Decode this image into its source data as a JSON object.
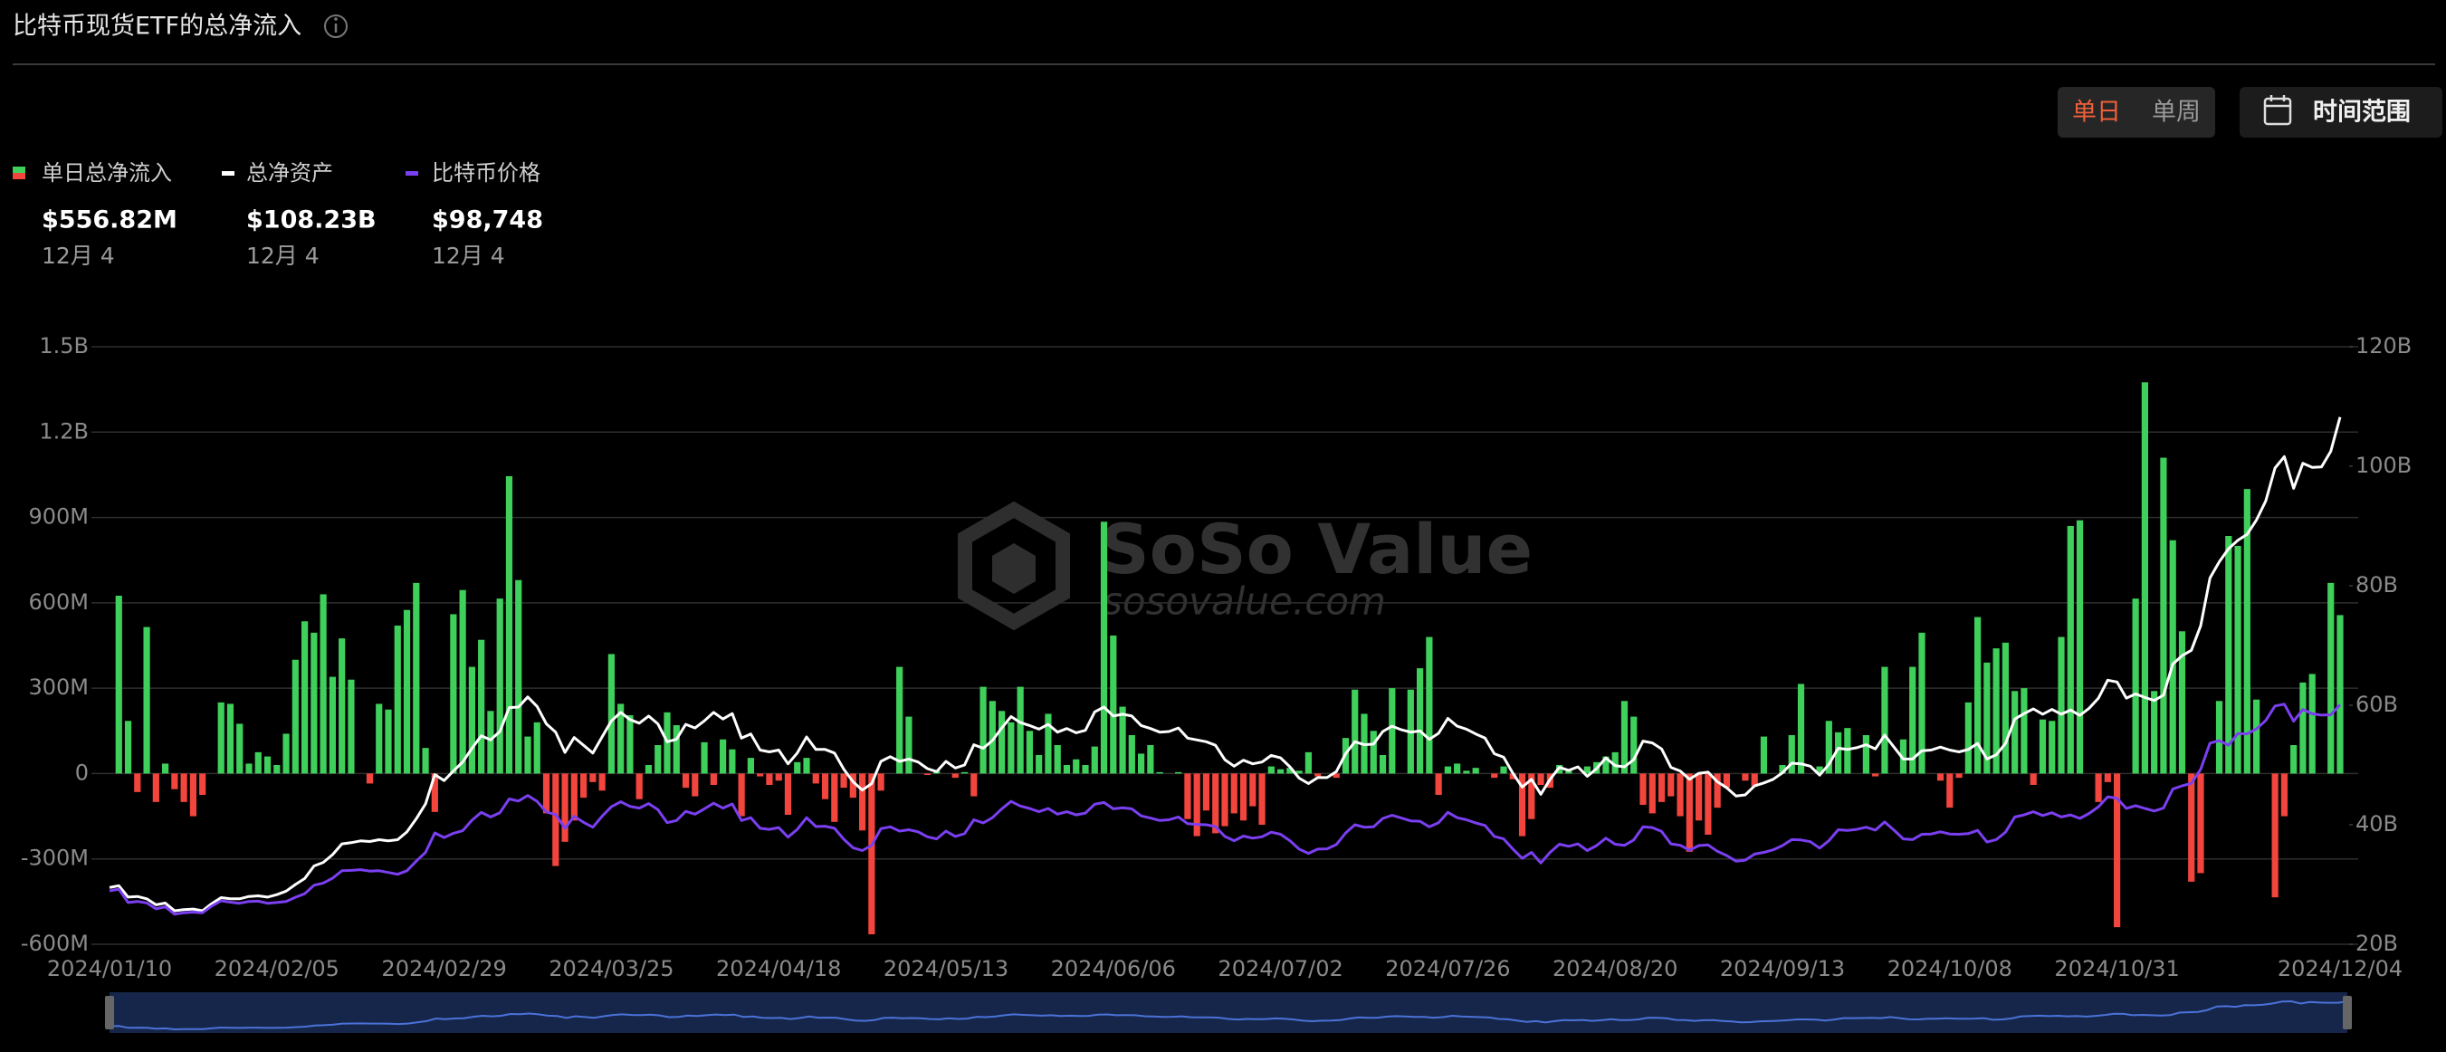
{
  "header": {
    "title": "比特币现货ETF的总净流入",
    "tabs": [
      "单日",
      "单周"
    ],
    "range_button": "时间范围"
  },
  "chart_data": {
    "type": "combo",
    "categories": [
      "2024/01/10",
      null,
      null,
      null,
      null,
      null,
      null,
      null,
      null,
      null,
      null,
      null,
      null,
      null,
      null,
      null,
      null,
      null,
      "2024/02/05",
      null,
      null,
      null,
      null,
      null,
      null,
      null,
      null,
      null,
      null,
      null,
      null,
      null,
      null,
      null,
      null,
      null,
      "2024/02/29",
      null,
      null,
      null,
      null,
      null,
      null,
      null,
      null,
      null,
      null,
      null,
      null,
      null,
      null,
      null,
      null,
      null,
      "2024/03/25",
      null,
      null,
      null,
      null,
      null,
      null,
      null,
      null,
      null,
      null,
      null,
      null,
      null,
      null,
      null,
      null,
      null,
      "2024/04/18",
      null,
      null,
      null,
      null,
      null,
      null,
      null,
      null,
      null,
      null,
      null,
      null,
      null,
      null,
      null,
      null,
      null,
      "2024/05/13",
      null,
      null,
      null,
      null,
      null,
      null,
      null,
      null,
      null,
      null,
      null,
      null,
      null,
      null,
      null,
      null,
      null,
      "2024/06/06",
      null,
      null,
      null,
      null,
      null,
      null,
      null,
      null,
      null,
      null,
      null,
      null,
      null,
      null,
      null,
      null,
      null,
      "2024/07/02",
      null,
      null,
      null,
      null,
      null,
      null,
      null,
      null,
      null,
      null,
      null,
      null,
      null,
      null,
      null,
      null,
      null,
      "2024/07/26",
      null,
      null,
      null,
      null,
      null,
      null,
      null,
      null,
      null,
      null,
      null,
      null,
      null,
      null,
      null,
      null,
      null,
      "2024/08/20",
      null,
      null,
      null,
      null,
      null,
      null,
      null,
      null,
      null,
      null,
      null,
      null,
      null,
      null,
      null,
      null,
      null,
      "2024/09/13",
      null,
      null,
      null,
      null,
      null,
      null,
      null,
      null,
      null,
      null,
      null,
      null,
      null,
      null,
      null,
      null,
      null,
      "2024/10/08",
      null,
      null,
      null,
      null,
      null,
      null,
      null,
      null,
      null,
      null,
      null,
      null,
      null,
      null,
      null,
      null,
      null,
      "2024/10/31",
      null,
      null,
      null,
      null,
      null,
      null,
      null,
      null,
      null,
      null,
      null,
      null,
      null,
      null,
      null,
      null,
      null,
      null,
      null,
      null,
      null,
      null,
      null,
      "2024/12/04"
    ],
    "series": [
      {
        "name": "单日总净流入",
        "type": "bar",
        "axis": "y",
        "color": "#3fcf5b",
        "negative_color": "#f2453d",
        "values": [
          null,
          625,
          185,
          -65,
          515,
          -100,
          35,
          -55,
          -100,
          -150,
          -75,
          0,
          250,
          245,
          175,
          35,
          75,
          60,
          30,
          140,
          400,
          535,
          495,
          630,
          340,
          475,
          330,
          0,
          -35,
          245,
          225,
          520,
          575,
          670,
          90,
          -135,
          0,
          560,
          645,
          375,
          470,
          220,
          615,
          1045,
          680,
          130,
          180,
          -140,
          -325,
          -240,
          -165,
          -85,
          -30,
          -60,
          420,
          245,
          205,
          -90,
          30,
          100,
          215,
          170,
          -50,
          -80,
          110,
          -40,
          120,
          85,
          -150,
          55,
          -10,
          -40,
          -25,
          -145,
          40,
          55,
          -35,
          -90,
          -170,
          -50,
          -85,
          -200,
          -565,
          -60,
          0,
          375,
          200,
          0,
          -5,
          10,
          0,
          -15,
          5,
          -80,
          305,
          255,
          220,
          180,
          305,
          150,
          65,
          210,
          100,
          30,
          50,
          30,
          95,
          885,
          485,
          235,
          135,
          70,
          100,
          5,
          0,
          5,
          -160,
          -220,
          -130,
          -210,
          -185,
          -140,
          -165,
          -115,
          -180,
          25,
          15,
          20,
          10,
          75,
          -10,
          0,
          -15,
          125,
          295,
          210,
          150,
          65,
          300,
          0,
          295,
          370,
          480,
          -75,
          25,
          35,
          10,
          20,
          0,
          -15,
          25,
          -20,
          -220,
          -160,
          -40,
          -50,
          30,
          10,
          0,
          25,
          40,
          60,
          75,
          255,
          200,
          -110,
          -140,
          -100,
          -80,
          -150,
          -275,
          -165,
          -215,
          -120,
          -50,
          0,
          -25,
          -45,
          130,
          0,
          30,
          135,
          315,
          0,
          25,
          185,
          145,
          160,
          0,
          135,
          -10,
          375,
          0,
          120,
          375,
          495,
          0,
          -25,
          -120,
          -15,
          250,
          550,
          390,
          440,
          460,
          290,
          300,
          -40,
          190,
          185,
          480,
          870,
          890,
          0,
          -100,
          -30,
          -540,
          0,
          615,
          1375,
          290,
          1110,
          820,
          500,
          -380,
          -350,
          0,
          255,
          835,
          800,
          1000,
          260,
          0,
          -435,
          -150,
          100,
          320,
          350,
          0,
          670,
          556.82
        ]
      },
      {
        "name": "总净资产",
        "type": "line",
        "axis": "y2",
        "color": "#ffffff",
        "values": [
          29.5,
          29.8,
          27.9,
          28.0,
          27.6,
          26.6,
          26.9,
          25.6,
          25.8,
          25.9,
          25.6,
          26.8,
          27.8,
          27.6,
          27.6,
          28.0,
          28.1,
          27.9,
          28.3,
          28.9,
          30.0,
          31.0,
          33.1,
          33.7,
          35.0,
          36.8,
          37.0,
          37.3,
          37.2,
          37.5,
          37.3,
          37.5,
          38.8,
          41.0,
          43.5,
          48.4,
          47.4,
          49.0,
          50.5,
          52.8,
          54.9,
          54.2,
          55.6,
          59.6,
          59.7,
          61.4,
          59.8,
          56.9,
          55.5,
          52.1,
          54.6,
          53.3,
          52.0,
          54.7,
          57.4,
          58.8,
          57.6,
          57.0,
          58.2,
          56.9,
          53.9,
          54.3,
          56.8,
          56.2,
          57.4,
          58.8,
          57.7,
          58.6,
          54.5,
          55.2,
          52.5,
          52.2,
          52.5,
          50.2,
          52.0,
          54.7,
          52.6,
          52.6,
          52.0,
          49.3,
          47.2,
          45.8,
          46.9,
          50.6,
          51.4,
          50.6,
          51.0,
          50.5,
          49.4,
          48.9,
          50.6,
          49.5,
          50.0,
          53.4,
          52.8,
          54.1,
          56.2,
          58.1,
          57.1,
          56.6,
          56.0,
          56.8,
          55.5,
          56.1,
          55.4,
          55.8,
          58.9,
          59.7,
          58.2,
          58.5,
          58.2,
          56.6,
          56.1,
          55.5,
          55.6,
          56.2,
          54.5,
          54.2,
          53.9,
          53.3,
          50.9,
          49.8,
          50.8,
          50.2,
          50.5,
          51.6,
          51.2,
          49.7,
          47.8,
          46.9,
          47.9,
          47.9,
          48.9,
          51.9,
          53.9,
          53.4,
          53.5,
          55.6,
          56.5,
          55.9,
          55.5,
          55.7,
          54.3,
          55.3,
          57.8,
          56.5,
          56.0,
          55.2,
          54.5,
          51.9,
          51.3,
          48.6,
          46.3,
          47.6,
          45.1,
          47.6,
          49.6,
          49.1,
          49.7,
          48.1,
          49.4,
          51.2,
          49.9,
          49.7,
          50.9,
          54.0,
          53.7,
          52.7,
          49.6,
          49.0,
          47.6,
          48.6,
          48.8,
          47.2,
          46.2,
          44.8,
          45.0,
          46.5,
          47.0,
          47.6,
          48.7,
          50.3,
          50.2,
          49.8,
          48.3,
          50.1,
          52.8,
          52.6,
          52.9,
          53.4,
          52.7,
          55.0,
          53.0,
          51.0,
          51.0,
          52.4,
          52.5,
          53.0,
          52.5,
          52.2,
          52.6,
          53.6,
          51.0,
          51.7,
          53.6,
          57.7,
          58.6,
          59.4,
          58.5,
          59.3,
          58.5,
          59.2,
          58.3,
          59.5,
          61.2,
          64.2,
          63.9,
          61.2,
          61.9,
          61.3,
          60.8,
          61.7,
          66.9,
          68.3,
          69.2,
          73.3,
          81.3,
          84.0,
          86.2,
          87.6,
          88.6,
          91.0,
          94.2,
          99.7,
          101.6,
          96.3,
          100.5,
          99.8,
          99.9,
          102.5,
          108.23
        ]
      },
      {
        "name": "比特币价格",
        "type": "line",
        "axis": "y3",
        "color": "#7b3ff2",
        "values": [
          46100,
          46600,
          42800,
          43100,
          42700,
          41000,
          41600,
          39500,
          39900,
          40100,
          39900,
          41800,
          43300,
          42900,
          42600,
          43100,
          43200,
          42600,
          42800,
          43100,
          44300,
          45300,
          47700,
          48300,
          49700,
          51800,
          51900,
          52100,
          51700,
          51800,
          51300,
          50800,
          51800,
          54500,
          57000,
          62500,
          61200,
          62400,
          63100,
          66100,
          68300,
          67000,
          68200,
          72100,
          71500,
          73100,
          71400,
          68400,
          67700,
          63800,
          67200,
          65500,
          64100,
          67200,
          69900,
          71300,
          70000,
          69500,
          70800,
          69100,
          65400,
          66000,
          68600,
          67800,
          69300,
          70900,
          69500,
          70700,
          66000,
          66800,
          63800,
          63500,
          64000,
          61300,
          63500,
          66800,
          64300,
          64400,
          63800,
          60700,
          58300,
          57500,
          59000,
          63700,
          64200,
          63000,
          63400,
          62800,
          61400,
          60800,
          63000,
          61500,
          62300,
          66200,
          65300,
          66800,
          69300,
          71400,
          70100,
          69400,
          68500,
          69400,
          67800,
          68500,
          67600,
          68100,
          70600,
          71100,
          69300,
          69600,
          69300,
          67300,
          66700,
          66000,
          66200,
          67000,
          65100,
          64900,
          64800,
          64300,
          61500,
          60300,
          61600,
          61000,
          61400,
          62700,
          62100,
          60300,
          57900,
          56700,
          57900,
          58000,
          59200,
          62500,
          64800,
          64100,
          64200,
          66600,
          67500,
          66700,
          65900,
          65800,
          64200,
          65400,
          68300,
          66800,
          66200,
          65300,
          64600,
          61500,
          60800,
          57900,
          55300,
          57000,
          54000,
          57000,
          59300,
          58700,
          59400,
          57500,
          58900,
          61000,
          59300,
          59000,
          60500,
          64200,
          64000,
          62900,
          59400,
          59000,
          57600,
          58900,
          59100,
          57300,
          56100,
          54500,
          54800,
          56500,
          57000,
          57700,
          58900,
          60600,
          60500,
          60000,
          58200,
          60300,
          63400,
          63200,
          63500,
          64100,
          63300,
          65600,
          63300,
          60800,
          60600,
          62100,
          62200,
          62800,
          62200,
          62100,
          62300,
          63200,
          59900,
          60600,
          62700,
          67000,
          67600,
          68500,
          67400,
          68200,
          67000,
          67600,
          66600,
          68000,
          69900,
          72700,
          72300,
          69400,
          70200,
          69400,
          68700,
          69500,
          74900,
          75800,
          76500,
          80500,
          87900,
          88600,
          87300,
          90600,
          90500,
          91900,
          94300,
          98400,
          98900,
          94100,
          97400,
          96200,
          95800,
          95900,
          98748
        ]
      }
    ],
    "ylim": [
      -600,
      1500
    ],
    "yticks": [
      {
        "value": -600,
        "label": "-600M"
      },
      {
        "value": -300,
        "label": "-300M"
      },
      0,
      {
        "value": 300,
        "label": "300M"
      },
      {
        "value": 600,
        "label": "600M"
      },
      {
        "value": 900,
        "label": "900M"
      },
      {
        "value": 1200,
        "label": "1.2B"
      },
      {
        "value": 1500,
        "label": "1.5B"
      }
    ],
    "y2lim": [
      20,
      120
    ],
    "y2ticks": [
      {
        "value": 20,
        "label": "20B"
      },
      {
        "value": 40,
        "label": "40B"
      },
      {
        "value": 60,
        "label": "60B"
      },
      {
        "value": 80,
        "label": "80B"
      },
      {
        "value": 100,
        "label": "100B"
      },
      {
        "value": 120,
        "label": "120B"
      }
    ],
    "y3lim": [
      31000,
      200000
    ],
    "grid": true,
    "readout": {
      "date": "12月 4",
      "labels": [
        "$556.82M",
        "$108.23B",
        "$98,748"
      ]
    },
    "watermark": {
      "name": "SoSo Value",
      "url": "sosovalue.com"
    },
    "navigator": true
  }
}
